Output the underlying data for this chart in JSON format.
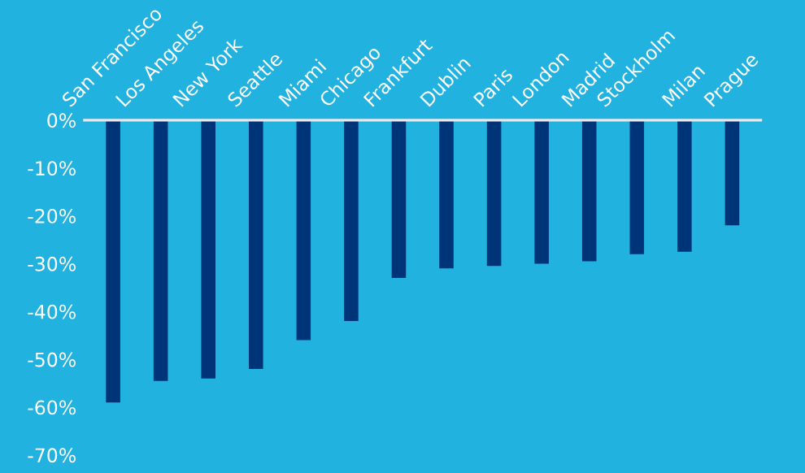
{
  "chart_data": {
    "type": "bar",
    "categories": [
      "San Francisco",
      "Los Angeles",
      "New York",
      "Seattle",
      "Miami",
      "Chicago",
      "Frankfurt",
      "Dublin",
      "Paris",
      "London",
      "Madrid",
      "Stockholm",
      "Milan",
      "Prague"
    ],
    "values": [
      -59,
      -54.5,
      -54,
      -52,
      -46,
      -42,
      -33,
      -31,
      -30.5,
      -30,
      -29.5,
      -28,
      -27.5,
      -22
    ],
    "color": "#003479",
    "ylim": [
      -70,
      0
    ],
    "yticks": [
      {
        "value": 0,
        "label": "0%"
      },
      {
        "value": -10,
        "label": "-10%"
      },
      {
        "value": -20,
        "label": "-20%"
      },
      {
        "value": -30,
        "label": "-30%"
      },
      {
        "value": -40,
        "label": "-40%"
      },
      {
        "value": -50,
        "label": "-50%"
      },
      {
        "value": -60,
        "label": "-60%"
      },
      {
        "value": -70,
        "label": "-70%"
      }
    ],
    "grid": false
  }
}
